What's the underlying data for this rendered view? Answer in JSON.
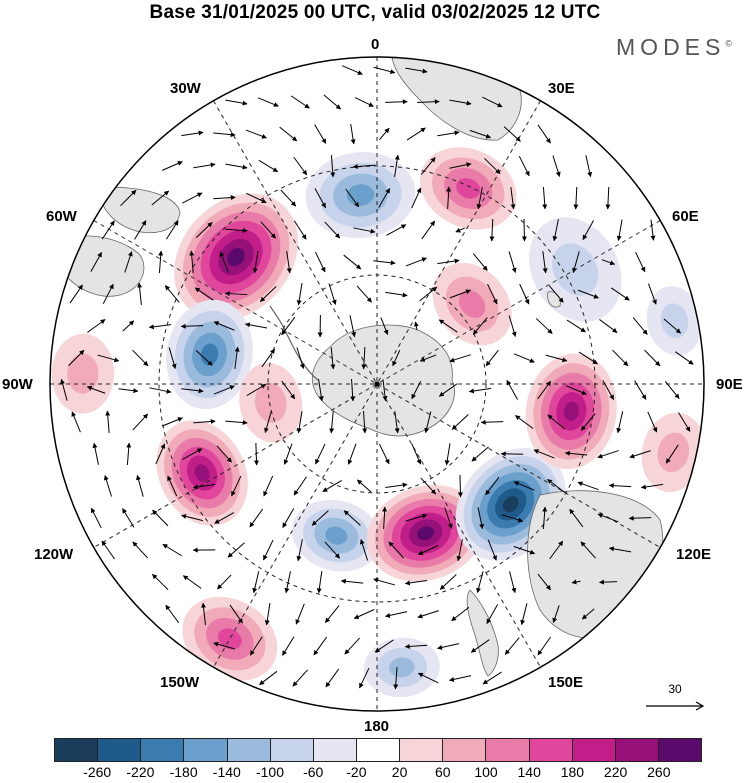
{
  "title": "Base 31/01/2025 00 UTC, valid 03/02/2025 12 UTC",
  "brand": "MODES",
  "brand_mark": "©",
  "longitude_labels": {
    "top": "0",
    "top_left": "30W",
    "top_right": "30E",
    "upper_left": "60W",
    "upper_right": "60E",
    "left": "90W",
    "right": "90E",
    "lower_left": "120W",
    "lower_right": "120E",
    "bottom_left": "150W",
    "bottom_right": "150E",
    "bottom": "180"
  },
  "reference_vector": {
    "label": "30",
    "icon": "arrow-right-icon"
  },
  "colorbar": {
    "colors": [
      "#1b3d5c",
      "#1f5a8a",
      "#3a7cb0",
      "#6aa0cb",
      "#9bbbdc",
      "#c6d3ea",
      "#e6e6f3",
      "#ffffff",
      "#f7d4d8",
      "#f0aab8",
      "#e97ba8",
      "#e0479c",
      "#c21e8a",
      "#951078",
      "#5a0a6a"
    ],
    "tick_labels": [
      "-260",
      "-220",
      "-180",
      "-140",
      "-100",
      "-60",
      "-20",
      "20",
      "60",
      "100",
      "140",
      "180",
      "220",
      "260"
    ]
  },
  "anomalies": [
    {
      "sign": "pos",
      "intensity": 0.95,
      "lon": -48,
      "rad": 0.58,
      "size": 70
    },
    {
      "sign": "neg",
      "intensity": 0.55,
      "lon": -5,
      "rad": 0.58,
      "size": 55
    },
    {
      "sign": "pos",
      "intensity": 0.5,
      "lon": 25,
      "rad": 0.66,
      "size": 50
    },
    {
      "sign": "neg",
      "intensity": 0.65,
      "lon": -80,
      "rad": 0.52,
      "size": 55
    },
    {
      "sign": "pos",
      "intensity": 0.35,
      "lon": -88,
      "rad": 0.9,
      "size": 40
    },
    {
      "sign": "pos",
      "intensity": 0.8,
      "lon": -117,
      "rad": 0.6,
      "size": 55
    },
    {
      "sign": "pos",
      "intensity": 0.35,
      "lon": -100,
      "rad": 0.33,
      "size": 40
    },
    {
      "sign": "neg",
      "intensity": 0.5,
      "lon": -165,
      "rad": 0.48,
      "size": 45
    },
    {
      "sign": "pos",
      "intensity": 1.0,
      "lon": 162,
      "rad": 0.48,
      "size": 60
    },
    {
      "sign": "neg",
      "intensity": 1.0,
      "lon": 132,
      "rad": 0.55,
      "size": 62
    },
    {
      "sign": "pos",
      "intensity": 0.8,
      "lon": 98,
      "rad": 0.6,
      "size": 58
    },
    {
      "sign": "pos",
      "intensity": 0.4,
      "lon": 50,
      "rad": 0.38,
      "size": 45
    },
    {
      "sign": "neg",
      "intensity": 0.35,
      "lon": 60,
      "rad": 0.7,
      "size": 55
    },
    {
      "sign": "pos",
      "intensity": 0.5,
      "lon": -150,
      "rad": 0.9,
      "size": 50
    },
    {
      "sign": "neg",
      "intensity": 0.4,
      "lon": 175,
      "rad": 0.87,
      "size": 38
    },
    {
      "sign": "pos",
      "intensity": 0.35,
      "lon": 103,
      "rad": 0.93,
      "size": 40
    },
    {
      "sign": "neg",
      "intensity": 0.3,
      "lon": 78,
      "rad": 0.93,
      "size": 35
    }
  ]
}
